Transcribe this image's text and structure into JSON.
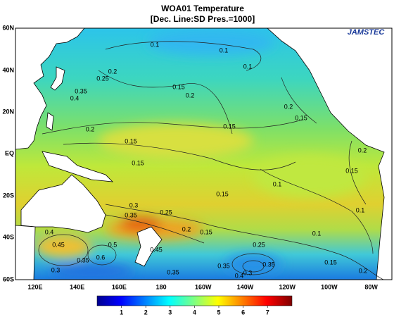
{
  "title": "WOA01 Temperature",
  "subtitle": "[Dec. Line:SD  Pres.=1000]",
  "logo": "JAMSTEC",
  "lat_labels": [
    "60N",
    "40N",
    "20N",
    "EQ",
    "20S",
    "40S",
    "60S"
  ],
  "lon_labels": [
    "120E",
    "140E",
    "160E",
    "180",
    "160W",
    "140W",
    "120W",
    "100W",
    "80W"
  ],
  "colorbar": {
    "ticks": [
      1,
      2,
      3,
      4,
      5,
      6,
      7
    ]
  },
  "contour_labels": [
    "0.1",
    "0.1",
    "0.1",
    "0.15",
    "0.2",
    "0.15",
    "0.25",
    "0.2",
    "0.35",
    "0.4",
    "0.2",
    "0.15",
    "0.15",
    "0.15",
    "0.1",
    "0.15",
    "0.1",
    "0.2",
    "0.15",
    "0.2",
    "0.3",
    "0.35",
    "0.25",
    "0.2",
    "0.15",
    "0.1",
    "0.15",
    "0.2",
    "0.25",
    "0.3",
    "0.35",
    "0.4",
    "0.35",
    "0.3",
    "0.35",
    "0.45",
    "0.4",
    "0.6",
    "0.5",
    "0.35",
    "0.45"
  ]
}
